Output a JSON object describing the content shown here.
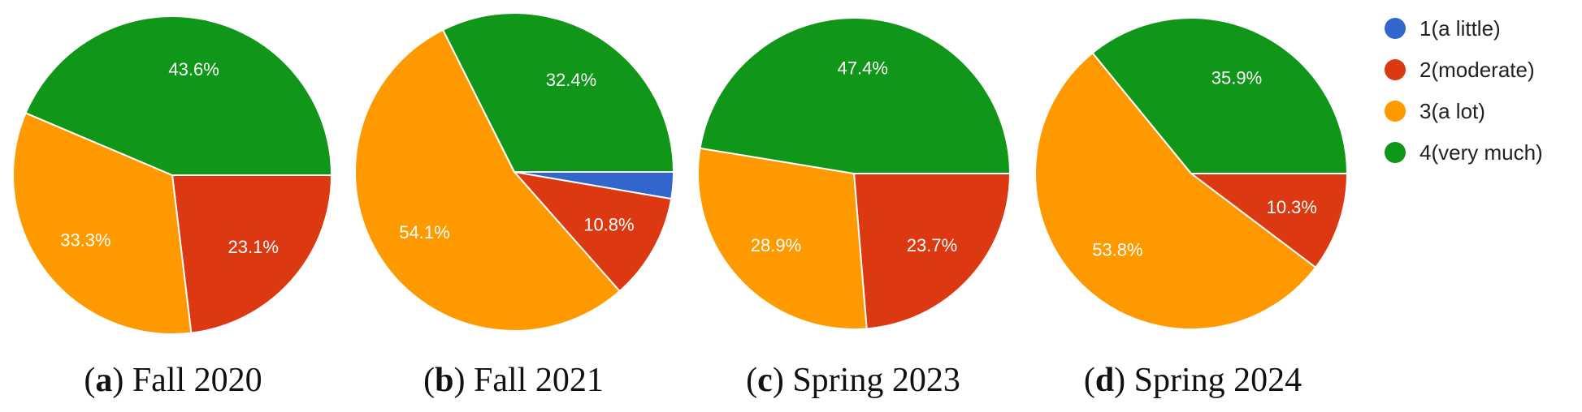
{
  "legend": [
    {
      "label": "1(a little)",
      "color": "#3366cc"
    },
    {
      "label": "2(moderate)",
      "color": "#dc3912"
    },
    {
      "label": "3(a lot)",
      "color": "#ff9900"
    },
    {
      "label": "4(very much)",
      "color": "#109618"
    }
  ],
  "chart_data": [
    {
      "type": "pie",
      "caption_letter": "a",
      "caption_text": "Fall 2020",
      "categories": [
        "1(a little)",
        "2(moderate)",
        "3(a lot)",
        "4(very much)"
      ],
      "values": [
        0,
        23.1,
        33.3,
        43.6
      ],
      "labels": [
        "",
        "23.1%",
        "33.3%",
        "43.6%"
      ]
    },
    {
      "type": "pie",
      "caption_letter": "b",
      "caption_text": "Fall 2021",
      "categories": [
        "1(a little)",
        "2(moderate)",
        "3(a lot)",
        "4(very much)"
      ],
      "values": [
        2.7,
        10.8,
        54.1,
        32.4
      ],
      "labels": [
        "",
        "10.8%",
        "54.1%",
        "32.4%"
      ]
    },
    {
      "type": "pie",
      "caption_letter": "c",
      "caption_text": "Spring 2023",
      "categories": [
        "1(a little)",
        "2(moderate)",
        "3(a lot)",
        "4(very much)"
      ],
      "values": [
        0,
        23.7,
        28.9,
        47.4
      ],
      "labels": [
        "",
        "23.7%",
        "28.9%",
        "47.4%"
      ]
    },
    {
      "type": "pie",
      "caption_letter": "d",
      "caption_text": "Spring 2024",
      "categories": [
        "1(a little)",
        "2(moderate)",
        "3(a lot)",
        "4(very much)"
      ],
      "values": [
        0,
        10.3,
        53.8,
        35.9
      ],
      "labels": [
        "",
        "10.3%",
        "53.8%",
        "35.9%"
      ]
    }
  ]
}
